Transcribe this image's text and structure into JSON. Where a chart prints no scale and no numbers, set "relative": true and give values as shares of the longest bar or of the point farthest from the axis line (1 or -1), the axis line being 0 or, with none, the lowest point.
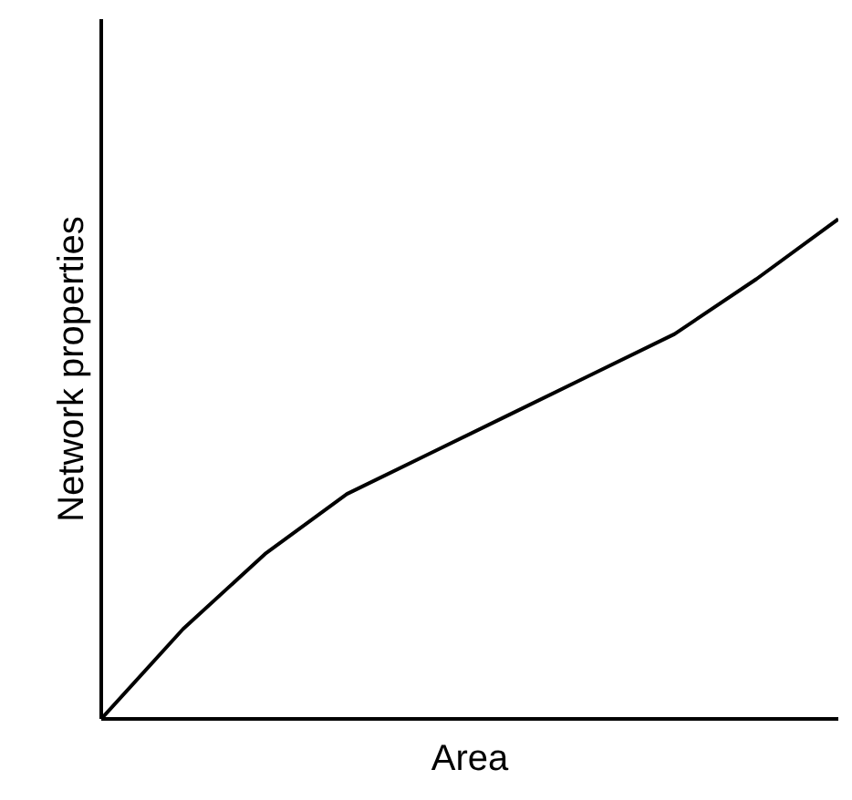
{
  "chart_data": {
    "type": "line",
    "relative": true,
    "xlabel": "Area",
    "ylabel": "Network properties",
    "categories": [
      null,
      null,
      null,
      null,
      null,
      null,
      null,
      null,
      null,
      null
    ],
    "series": [
      {
        "color": "#000000",
        "values": [
          0,
          0.18,
          0.33,
          0.45,
          0.53,
          0.61,
          0.69,
          0.77,
          0.88,
          1.0
        ]
      }
    ],
    "grid": false,
    "marker": "none",
    "line_style": "solid",
    "tick_labels": false
  }
}
